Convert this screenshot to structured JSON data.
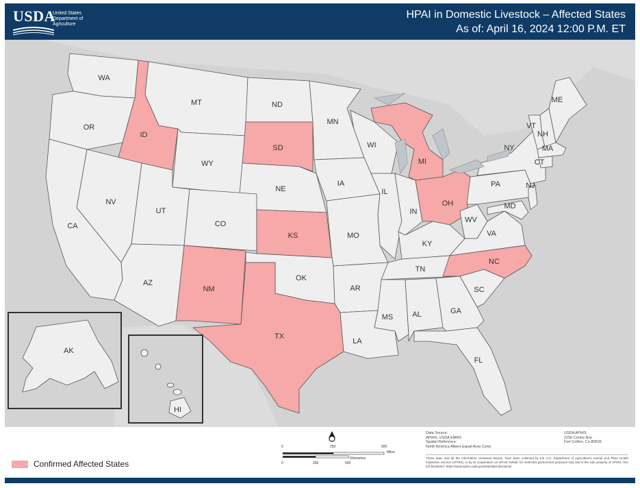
{
  "header": {
    "logo_text": "USDA",
    "agency_lines": [
      "United States",
      "Department of",
      "Agriculture"
    ],
    "title": "HPAI in Domestic Livestock – Affected States",
    "subtitle": "As of:  April 16, 2024 12:00 P.M. ET"
  },
  "colors": {
    "affected": "#f7a8a8",
    "unaffected": "#efefef",
    "background": "#d3d3d3",
    "header": "#0f3b66"
  },
  "states": [
    {
      "abbr": "WA",
      "affected": false
    },
    {
      "abbr": "OR",
      "affected": false
    },
    {
      "abbr": "ID",
      "affected": true
    },
    {
      "abbr": "MT",
      "affected": false
    },
    {
      "abbr": "WY",
      "affected": false
    },
    {
      "abbr": "ND",
      "affected": false
    },
    {
      "abbr": "SD",
      "affected": true
    },
    {
      "abbr": "NE",
      "affected": false
    },
    {
      "abbr": "MN",
      "affected": false
    },
    {
      "abbr": "WI",
      "affected": false
    },
    {
      "abbr": "MI",
      "affected": true
    },
    {
      "abbr": "IA",
      "affected": false
    },
    {
      "abbr": "IL",
      "affected": false
    },
    {
      "abbr": "IN",
      "affected": false
    },
    {
      "abbr": "OH",
      "affected": true
    },
    {
      "abbr": "NV",
      "affected": false
    },
    {
      "abbr": "UT",
      "affected": false
    },
    {
      "abbr": "CO",
      "affected": false
    },
    {
      "abbr": "KS",
      "affected": true
    },
    {
      "abbr": "MO",
      "affected": false
    },
    {
      "abbr": "KY",
      "affected": false
    },
    {
      "abbr": "WV",
      "affected": false
    },
    {
      "abbr": "VA",
      "affected": false
    },
    {
      "abbr": "CA",
      "affected": false
    },
    {
      "abbr": "AZ",
      "affected": false
    },
    {
      "abbr": "NM",
      "affected": true
    },
    {
      "abbr": "OK",
      "affected": false
    },
    {
      "abbr": "AR",
      "affected": false
    },
    {
      "abbr": "TN",
      "affected": false
    },
    {
      "abbr": "NC",
      "affected": true
    },
    {
      "abbr": "SC",
      "affected": false
    },
    {
      "abbr": "TX",
      "affected": true
    },
    {
      "abbr": "LA",
      "affected": false
    },
    {
      "abbr": "MS",
      "affected": false
    },
    {
      "abbr": "AL",
      "affected": false
    },
    {
      "abbr": "GA",
      "affected": false
    },
    {
      "abbr": "FL",
      "affected": false
    },
    {
      "abbr": "PA",
      "affected": false
    },
    {
      "abbr": "NY",
      "affected": false
    },
    {
      "abbr": "VT",
      "affected": false
    },
    {
      "abbr": "NH",
      "affected": false
    },
    {
      "abbr": "ME",
      "affected": false
    },
    {
      "abbr": "MA",
      "affected": false
    },
    {
      "abbr": "CT",
      "affected": false
    },
    {
      "abbr": "NJ",
      "affected": false
    },
    {
      "abbr": "MD",
      "affected": false
    },
    {
      "abbr": "AK",
      "affected": false
    },
    {
      "abbr": "HI",
      "affected": false
    }
  ],
  "legend": {
    "label": "Confirmed Affected States"
  },
  "scale": {
    "miles_ticks": [
      "0",
      "250",
      "500"
    ],
    "miles_unit": "Miles",
    "km_ticks": [
      "0",
      "250",
      "500"
    ],
    "km_unit": "Kilometers"
  },
  "credits": {
    "source_lines": [
      "Data Source:",
      "APHIS, USDA EMRS",
      "Spatial Reference:",
      "North America Albers Equal Area Conic"
    ],
    "org_lines": [
      "USDA APHIS",
      "2150 Centre Ave",
      "Fort Collins, Co 80526"
    ],
    "disclaimer": "These data, and all the information contained therein, have been collected by the U.S. Department of Agriculture's Animal and Plant Health Inspection Service (APHIS), or by its cooperators on APHIS' behalf, for restricted government purposes only and is the sole property of APHIS. See full disclaimer: https://www.aphis.usda.gov/help/data-disclaimer"
  }
}
